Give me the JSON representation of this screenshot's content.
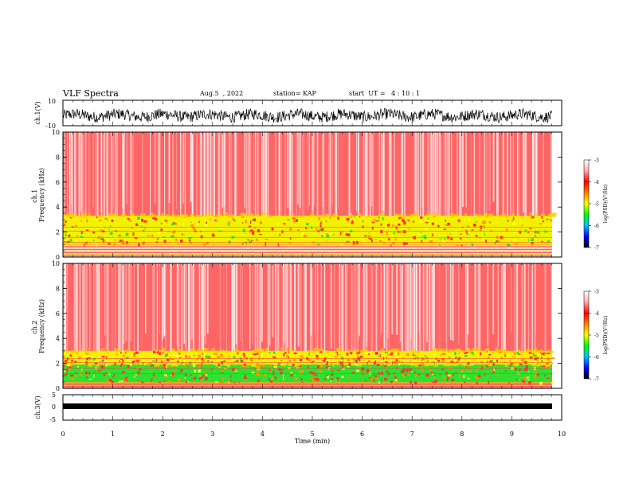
{
  "header": {
    "title": "VLF Spectra",
    "date": "Aug.5  , 2022",
    "station": "station= KAP",
    "start_ut": "start  UT =   4 : 10 : 1"
  },
  "colors": {
    "spec_high": "#ff2020",
    "spec_low_yellow": "#f2f200",
    "spec_low_green": "#30e030",
    "trace": "#000000"
  },
  "chart_data": [
    {
      "type": "line",
      "panel": "ch1-waveform",
      "ylabel": "ch.1(V)",
      "ylim": [
        -10,
        10
      ],
      "yticks": [
        "10",
        "-10"
      ],
      "xlim": [
        0,
        10
      ],
      "description": "noise amplitude trace, approx ±6 V about -2 V",
      "x": [
        0,
        1,
        2,
        3,
        4,
        5,
        6,
        7,
        8,
        9,
        9.8
      ],
      "y": [
        -2,
        -3,
        -1,
        -2,
        -3,
        -1,
        -2,
        -3,
        -2,
        -1,
        -2
      ]
    },
    {
      "type": "heatmap",
      "panel": "ch1-spectrogram",
      "ylabel": "ch.1\nFrequency (kHz)",
      "ylim": [
        0,
        10
      ],
      "yticks": [
        "0",
        "2",
        "4",
        "6",
        "8",
        "10"
      ],
      "xlim": [
        0,
        10
      ],
      "colorbar": {
        "label": "log(PSD)(V²/Hz)",
        "range": [
          -7,
          -3
        ],
        "ticks": [
          "-3",
          "-4",
          "-5",
          "-6",
          "-7"
        ]
      },
      "bands": [
        {
          "from_khz": 0,
          "to_khz": 1.0,
          "level": "mixed"
        },
        {
          "from_khz": 1.0,
          "to_khz": 3.3,
          "level": -4.5
        },
        {
          "from_khz": 3.3,
          "to_khz": 10,
          "level": -3.2
        }
      ]
    },
    {
      "type": "heatmap",
      "panel": "ch2-spectrogram",
      "ylabel": "ch.2\nFrequency (kHz)",
      "ylim": [
        0,
        10
      ],
      "yticks": [
        "0",
        "2",
        "4",
        "6",
        "8",
        "10"
      ],
      "xlim": [
        0,
        10
      ],
      "colorbar": {
        "label": "log(PSD)(V²/Hz)",
        "range": [
          -7,
          -3
        ],
        "ticks": [
          "-3",
          "-4",
          "-5",
          "-6",
          "-7"
        ]
      },
      "bands": [
        {
          "from_khz": 0,
          "to_khz": 0.5,
          "level": "mixed"
        },
        {
          "from_khz": 0.5,
          "to_khz": 1.9,
          "level": -5.0
        },
        {
          "from_khz": 1.9,
          "to_khz": 3.0,
          "level": -4.4
        },
        {
          "from_khz": 3.0,
          "to_khz": 10,
          "level": -3.2
        }
      ]
    },
    {
      "type": "line",
      "panel": "ch3-waveform",
      "ylabel": "ch.3(V)",
      "ylim": [
        -5,
        5
      ],
      "yticks": [
        "5",
        "0",
        "-5"
      ],
      "xlim": [
        0,
        10
      ],
      "xlabel": "Time (min)",
      "xticks": [
        "0",
        "1",
        "2",
        "3",
        "4",
        "5",
        "6",
        "7",
        "8",
        "9",
        "10"
      ],
      "description": "dense trace around +0.5 V",
      "x": [
        0,
        9.8
      ],
      "y": [
        0.5,
        0.5
      ]
    }
  ]
}
